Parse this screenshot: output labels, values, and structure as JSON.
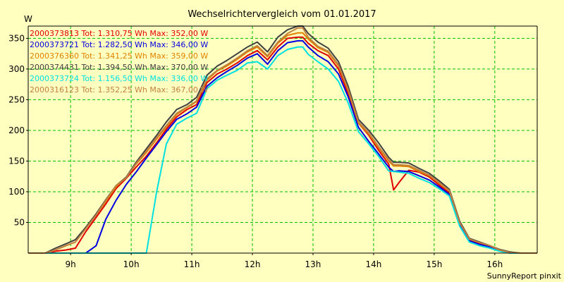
{
  "chart_data": {
    "type": "line",
    "title": "Wechselrichtervergleich vom 01.01.2017",
    "ylabel": "W",
    "xlabel": "",
    "ylim": [
      0,
      370
    ],
    "xlim": [
      8.3,
      16.7
    ],
    "yticks": [
      50,
      100,
      150,
      200,
      250,
      300,
      350
    ],
    "xticks": [
      {
        "value": 9,
        "label": "9h"
      },
      {
        "value": 10,
        "label": "10h"
      },
      {
        "value": 11,
        "label": "11h"
      },
      {
        "value": 12,
        "label": "12h"
      },
      {
        "value": 13,
        "label": "13h"
      },
      {
        "value": 14,
        "label": "14h"
      },
      {
        "value": 15,
        "label": "15h"
      },
      {
        "value": 16,
        "label": "16h"
      }
    ],
    "grid": true,
    "legend_position": "top-left",
    "x": [
      8.3,
      8.56,
      8.58,
      8.75,
      8.92,
      9.08,
      9.25,
      9.42,
      9.58,
      9.75,
      9.92,
      10.08,
      10.25,
      10.42,
      10.58,
      10.75,
      10.92,
      11.08,
      11.25,
      11.42,
      11.58,
      11.75,
      11.92,
      12.08,
      12.25,
      12.42,
      12.58,
      12.75,
      12.83,
      12.92,
      13.08,
      13.25,
      13.42,
      13.58,
      13.75,
      13.92,
      14.08,
      14.25,
      14.33,
      14.42,
      14.58,
      14.75,
      14.92,
      15.08,
      15.25,
      15.42,
      15.58,
      15.75,
      15.92,
      16.08,
      16.25,
      16.42,
      16.58,
      16.7
    ],
    "series": [
      {
        "name": "2000373813 Tot: 1.310,75 Wh Max: 352,00 W",
        "color": "#e00000",
        "values": [
          0,
          0,
          0,
          3,
          5,
          8,
          35,
          58,
          80,
          105,
          122,
          140,
          158,
          180,
          202,
          222,
          234,
          242,
          278,
          292,
          300,
          310,
          322,
          330,
          315,
          336,
          350,
          352,
          352,
          342,
          330,
          322,
          300,
          260,
          212,
          192,
          168,
          145,
          103,
          115,
          135,
          132,
          124,
          111,
          98,
          48,
          22,
          16,
          12,
          5,
          1,
          0,
          0,
          0
        ]
      },
      {
        "name": "2000373721 Tot: 1.282,50 Wh Max: 346,00 W",
        "color": "#0000e0",
        "values": [
          0,
          0,
          0,
          0,
          0,
          0,
          0,
          12,
          55,
          86,
          112,
          132,
          155,
          177,
          198,
          218,
          227,
          238,
          272,
          286,
          296,
          306,
          318,
          325,
          308,
          330,
          343,
          346,
          346,
          336,
          322,
          312,
          292,
          255,
          205,
          182,
          162,
          140,
          133,
          134,
          133,
          126,
          119,
          108,
          96,
          46,
          20,
          14,
          10,
          4,
          0,
          0,
          0,
          0
        ]
      },
      {
        "name": "2000376360 Tot: 1.341,25 Wh Max: 359,00 W",
        "color": "#e08000",
        "values": [
          0,
          0,
          0,
          5,
          12,
          18,
          40,
          62,
          84,
          108,
          124,
          145,
          164,
          186,
          206,
          226,
          237,
          247,
          282,
          297,
          305,
          316,
          328,
          336,
          320,
          342,
          355,
          359,
          359,
          349,
          335,
          327,
          305,
          265,
          212,
          194,
          172,
          150,
          142,
          142,
          141,
          133,
          126,
          114,
          101,
          50,
          23,
          17,
          12,
          5,
          1,
          0,
          0,
          0
        ]
      },
      {
        "name": "2000374431 Tot: 1.394,50 Wh Max: 370,00 W",
        "color": "#404040",
        "values": [
          0,
          0,
          0,
          8,
          15,
          22,
          42,
          64,
          87,
          110,
          124,
          148,
          170,
          192,
          214,
          234,
          242,
          254,
          290,
          305,
          314,
          325,
          336,
          344,
          328,
          352,
          364,
          370,
          370,
          358,
          344,
          334,
          312,
          272,
          218,
          200,
          180,
          156,
          148,
          148,
          147,
          138,
          130,
          118,
          104,
          52,
          24,
          18,
          12,
          6,
          2,
          0,
          0,
          0
        ]
      },
      {
        "name": "2000373724 Tot: 1.156,50 Wh Max: 336,00 W",
        "color": "#00e0e0",
        "values": [
          0,
          0,
          0,
          0,
          0,
          0,
          0,
          0,
          0,
          0,
          0,
          0,
          0,
          100,
          178,
          210,
          220,
          228,
          268,
          282,
          290,
          298,
          310,
          312,
          300,
          322,
          332,
          336,
          336,
          324,
          312,
          300,
          280,
          245,
          198,
          178,
          158,
          134,
          133,
          132,
          130,
          122,
          115,
          105,
          93,
          44,
          18,
          12,
          8,
          3,
          0,
          0,
          0,
          0
        ]
      },
      {
        "name": "2000316123 Tot: 1.352,25 Wh Max: 367,00 W",
        "color": "#c08040",
        "values": [
          0,
          0,
          0,
          5,
          12,
          18,
          40,
          62,
          86,
          110,
          123,
          146,
          166,
          188,
          208,
          228,
          238,
          248,
          284,
          298,
          307,
          318,
          330,
          338,
          322,
          344,
          358,
          367,
          367,
          352,
          337,
          329,
          307,
          267,
          214,
          196,
          174,
          152,
          144,
          144,
          143,
          135,
          127,
          115,
          102,
          50,
          23,
          17,
          12,
          5,
          1,
          0,
          0,
          0
        ]
      }
    ]
  },
  "footer": "SunnyReport pinxit",
  "colors": {
    "background": "#ffffc0",
    "plot_background": "#ffffc0",
    "grid": "#00c000",
    "axis": "#000000"
  }
}
